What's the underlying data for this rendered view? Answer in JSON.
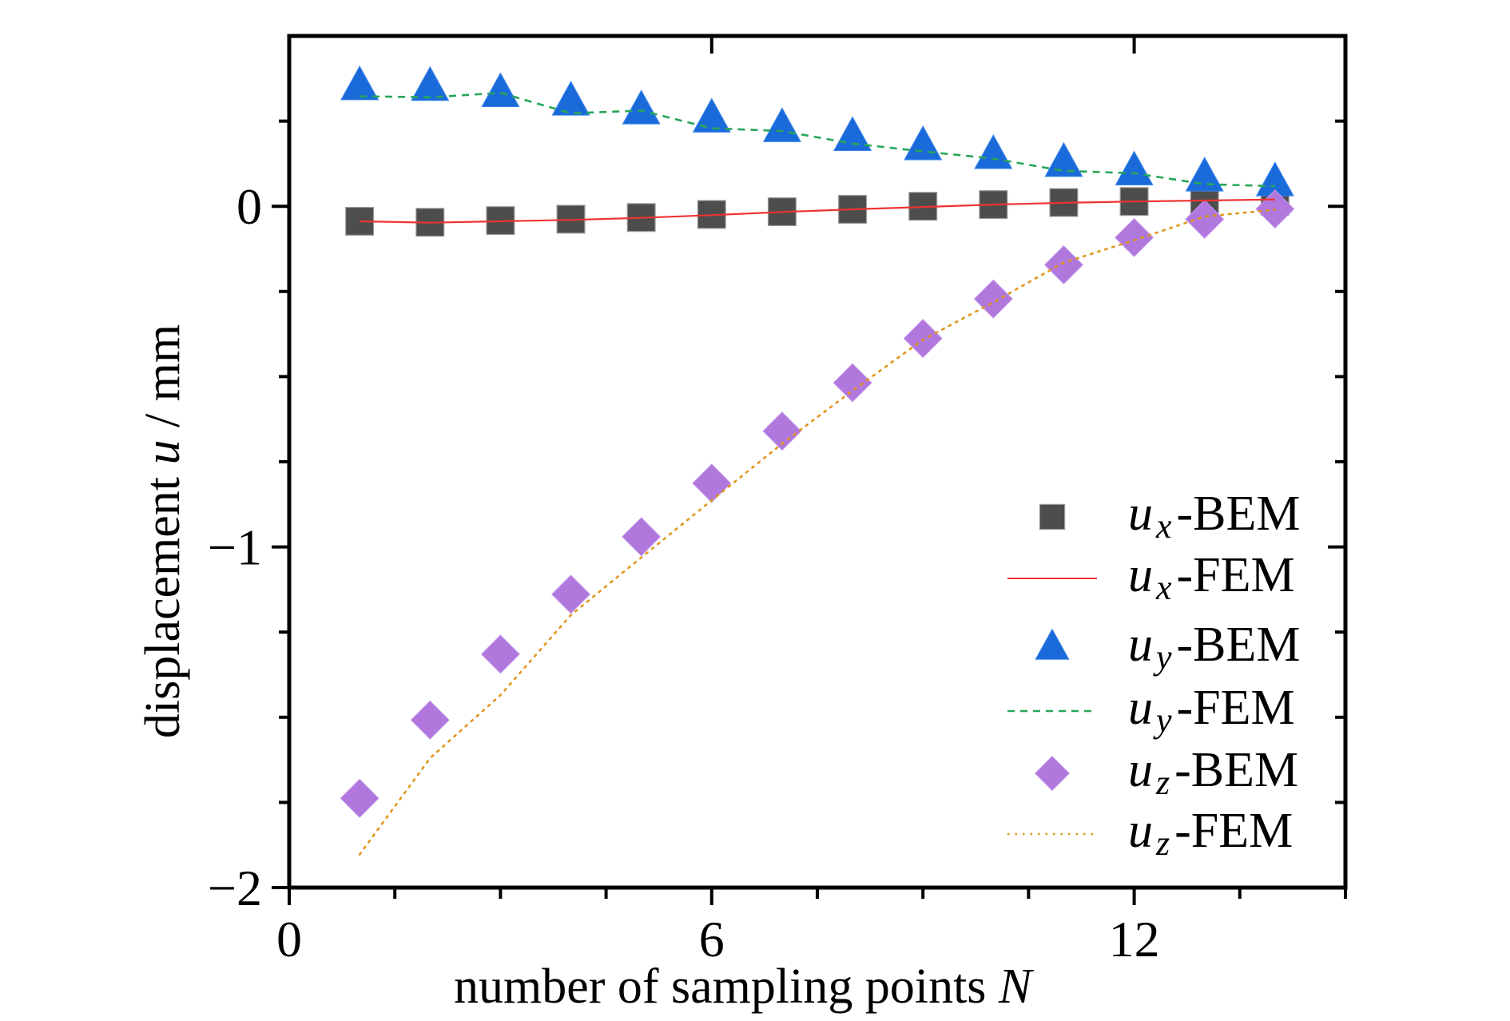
{
  "chart_data": {
    "type": "scatter",
    "title": "",
    "xlabel": "number of sampling points",
    "xlabel_symbol": "N",
    "ylabel": "displacement",
    "ylabel_symbol": "u",
    "ylabel_unit": " / mm",
    "xlim": [
      0,
      15
    ],
    "ylim": [
      -2,
      0.5
    ],
    "xticks": [
      0,
      6,
      12
    ],
    "xticks_minor": [
      1.5,
      3,
      4.5,
      7.5,
      9,
      10.5,
      13.5,
      15
    ],
    "yticks": [
      0,
      -1,
      -2
    ],
    "yticks_minor": [
      0.25,
      -0.25,
      -0.5,
      -0.75,
      -1.25,
      -1.5,
      -1.75
    ],
    "xtick_labels": [
      "0",
      "6",
      "12"
    ],
    "ytick_labels": [
      "0",
      "−1",
      "−2"
    ],
    "grid": false,
    "legend_position": "bottom-right",
    "x": [
      1,
      2,
      3,
      4,
      5,
      6,
      7,
      8,
      9,
      10,
      11,
      12,
      13,
      14
    ],
    "series": [
      {
        "name": "ux-BEM",
        "sym": "u",
        "sub": "x",
        "method": "-BEM",
        "kind": "marker",
        "marker": "square",
        "color": "#4d4d4d",
        "values": [
          -0.044,
          -0.047,
          -0.042,
          -0.038,
          -0.033,
          -0.024,
          -0.016,
          -0.009,
          0.0,
          0.005,
          0.011,
          0.014,
          0.016,
          0.015
        ]
      },
      {
        "name": "ux-FEM",
        "sym": "u",
        "sub": "x",
        "method": "-FEM",
        "kind": "line",
        "dash": "solid",
        "color": "#ee3333",
        "values": [
          -0.044,
          -0.048,
          -0.044,
          -0.04,
          -0.034,
          -0.026,
          -0.017,
          -0.009,
          -0.002,
          0.005,
          0.01,
          0.014,
          0.017,
          0.02
        ]
      },
      {
        "name": "uy-BEM",
        "sym": "u",
        "sub": "y",
        "method": "-BEM",
        "kind": "marker",
        "marker": "triangle",
        "color": "#1a6ad9",
        "values": [
          0.35,
          0.348,
          0.33,
          0.305,
          0.279,
          0.255,
          0.227,
          0.201,
          0.174,
          0.148,
          0.125,
          0.1,
          0.082,
          0.068
        ]
      },
      {
        "name": "uy-FEM",
        "sym": "u",
        "sub": "y",
        "method": "-FEM",
        "kind": "line",
        "dash": "dashed",
        "color": "#27a65a",
        "values": [
          0.323,
          0.32,
          0.333,
          0.273,
          0.281,
          0.229,
          0.221,
          0.184,
          0.161,
          0.14,
          0.104,
          0.097,
          0.065,
          0.059
        ]
      },
      {
        "name": "uz-BEM",
        "sym": "u",
        "sub": "z",
        "method": "-BEM",
        "kind": "marker",
        "marker": "diamond",
        "color": "#b077dd",
        "values": [
          -1.738,
          -1.508,
          -1.315,
          -1.139,
          -0.97,
          -0.813,
          -0.66,
          -0.518,
          -0.388,
          -0.272,
          -0.172,
          -0.092,
          -0.038,
          -0.008
        ]
      },
      {
        "name": "uz-FEM",
        "sym": "u",
        "sub": "z",
        "method": "-FEM",
        "kind": "line",
        "dash": "dotted",
        "color": "#e0961c",
        "values": [
          -1.903,
          -1.62,
          -1.435,
          -1.2,
          -1.031,
          -0.863,
          -0.697,
          -0.541,
          -0.392,
          -0.282,
          -0.165,
          -0.1,
          -0.03,
          -0.01
        ]
      }
    ]
  }
}
